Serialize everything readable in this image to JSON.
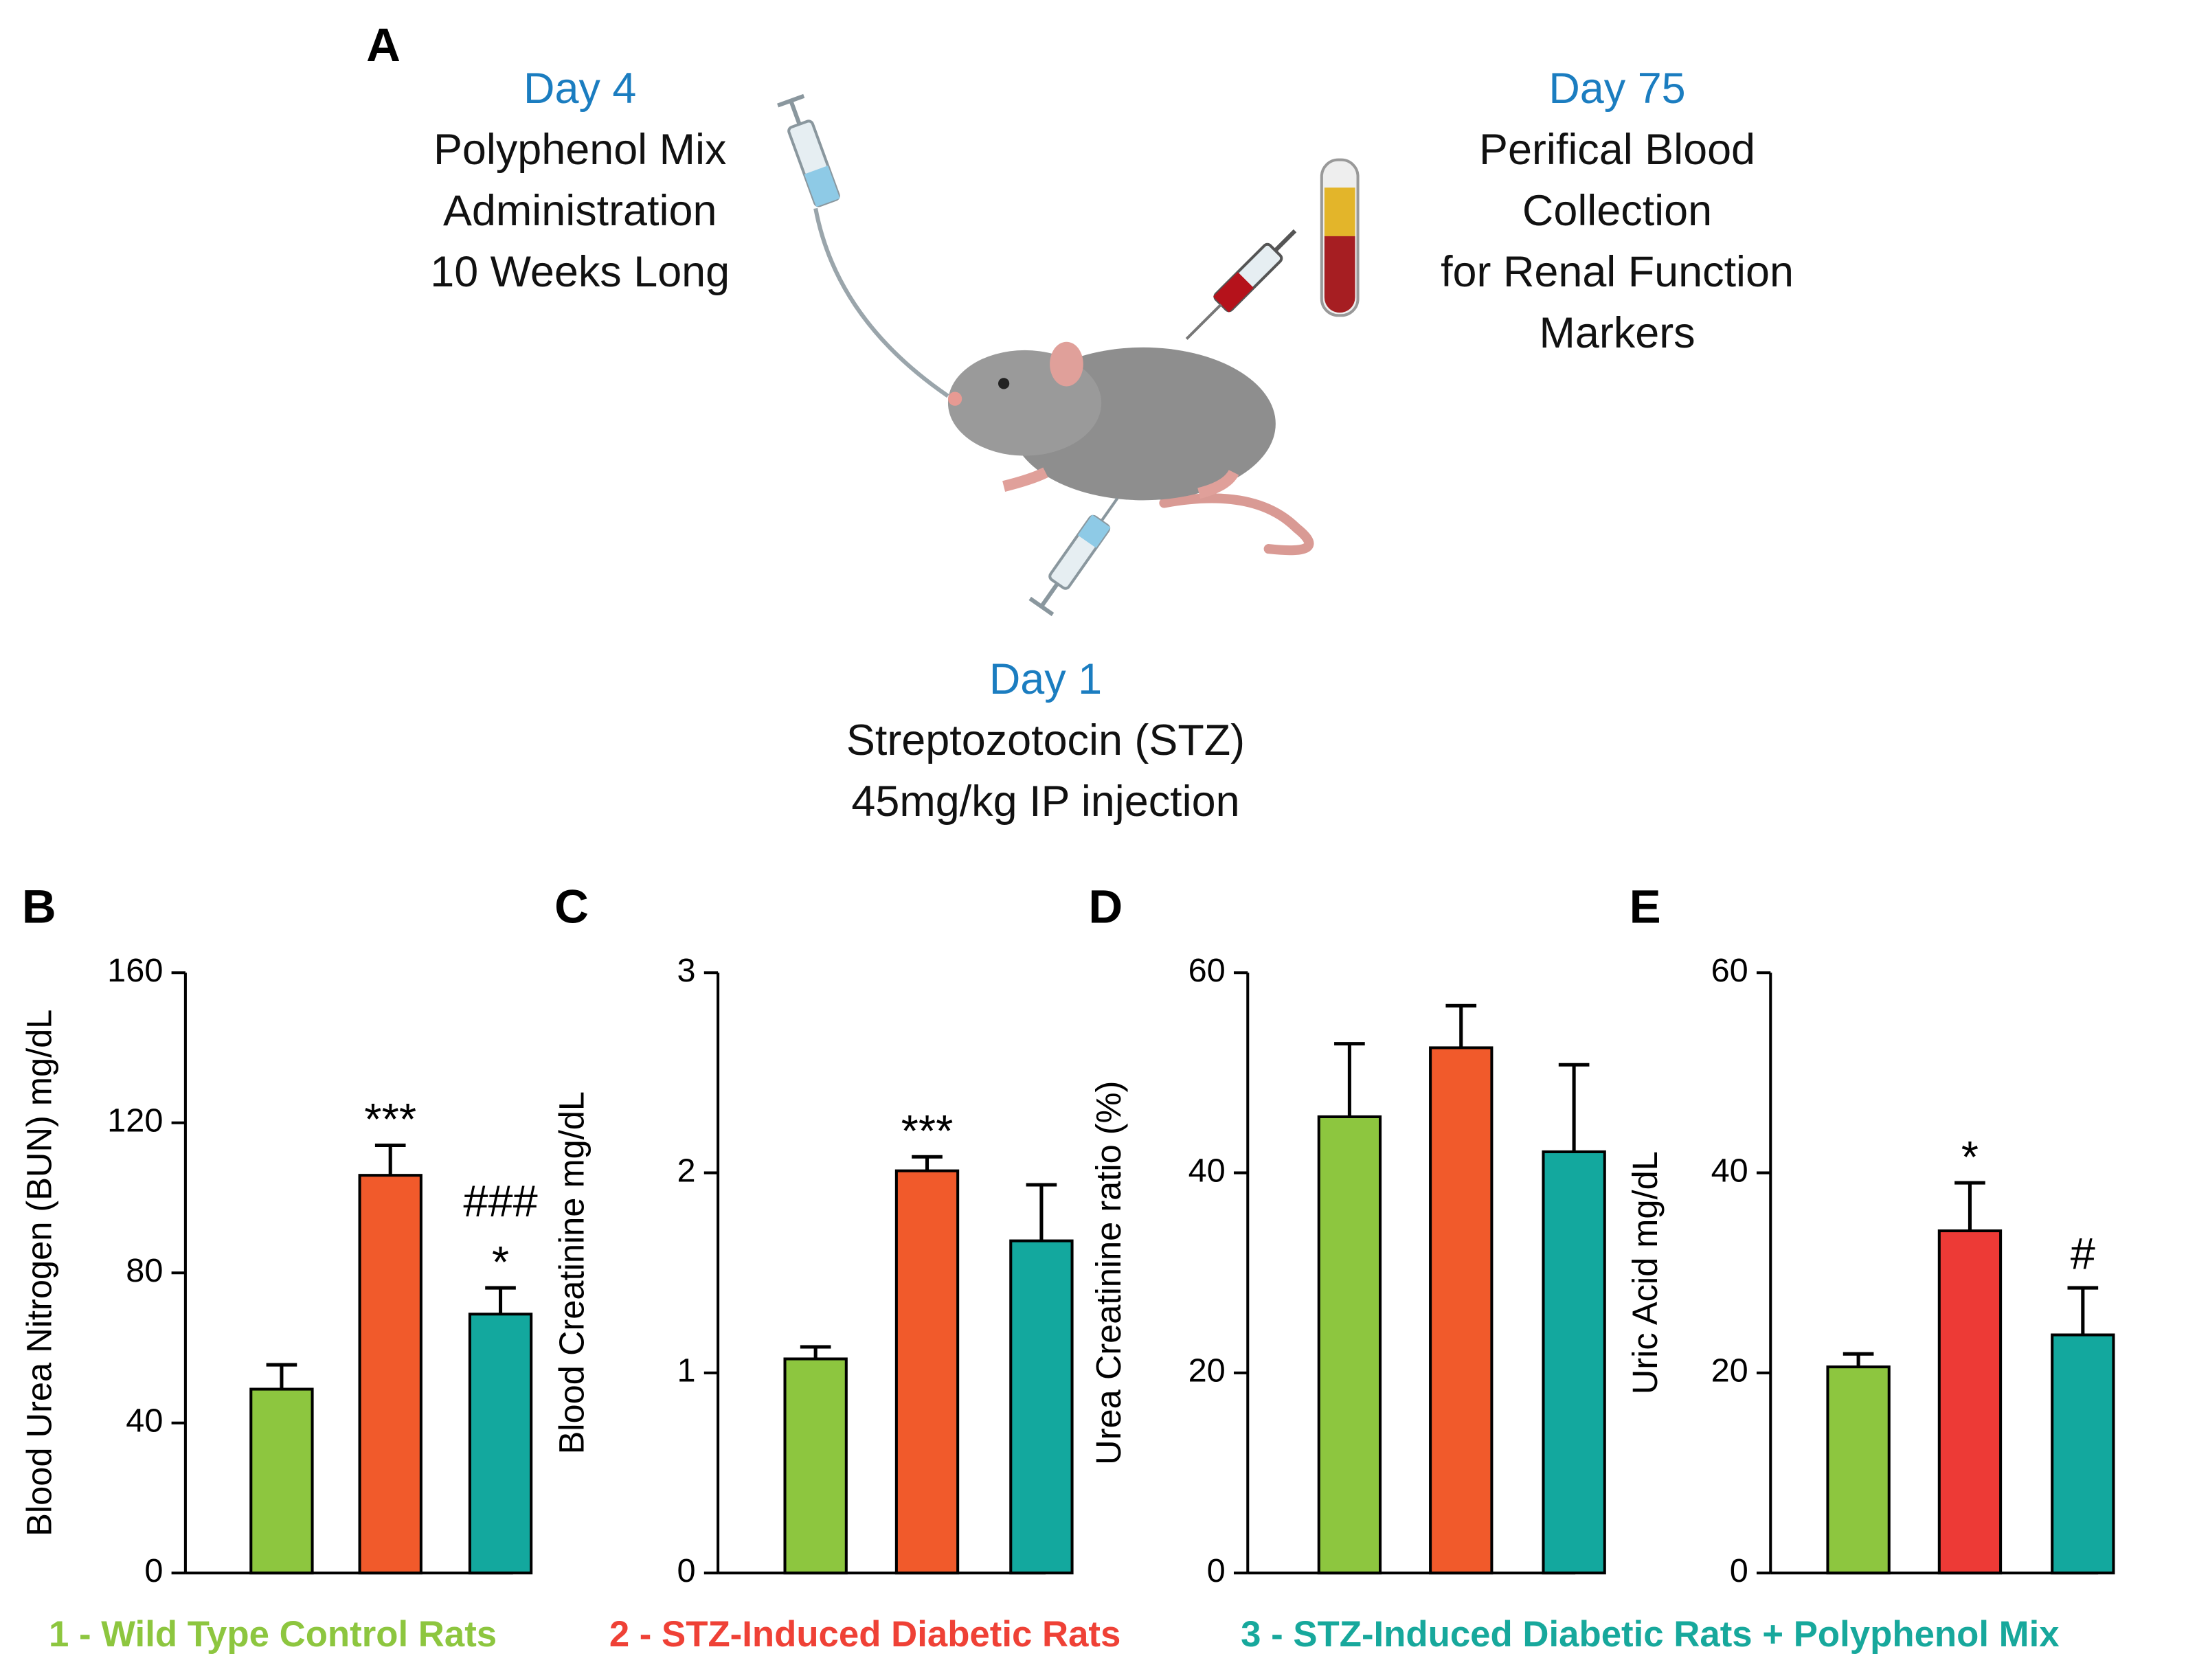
{
  "panel_a": {
    "label": "A",
    "steps": [
      {
        "day": "Day 4",
        "lines": [
          "Polyphenol Mix",
          "Administration",
          "10 Weeks Long"
        ]
      },
      {
        "day": "Day 75",
        "lines": [
          "Perifical Blood",
          "Collection",
          "for Renal Function",
          "Markers"
        ]
      },
      {
        "day": "Day 1",
        "lines": [
          "Streptozotocin (STZ)",
          "45mg/kg IP injection"
        ]
      }
    ]
  },
  "groups": [
    {
      "name": "1 - Wild Type Control Rats",
      "color": "#8dc63f"
    },
    {
      "name": "2 - STZ-Induced Diabetic Rats",
      "color": "#ef4136"
    },
    {
      "name": "3 - STZ-Induced Diabetic Rats + Polyphenol Mix",
      "color": "#17a89c"
    }
  ],
  "chart_data": [
    {
      "type": "bar",
      "panel": "B",
      "ylabel": "Blood Urea Nitrogen (BUN) mg/dL",
      "values": [
        49,
        106,
        69
      ],
      "errors": [
        6.5,
        8,
        7
      ],
      "colors": [
        "#8dc63f",
        "#f15a2b",
        "#13a89e"
      ],
      "annotations": [
        null,
        [
          "***"
        ],
        [
          "###",
          "*"
        ]
      ],
      "ylim": [
        0,
        160
      ],
      "yticks": [
        0,
        40,
        80,
        120,
        160
      ]
    },
    {
      "type": "bar",
      "panel": "C",
      "ylabel": "Blood Creatinine mg/dL",
      "values": [
        1.07,
        2.01,
        1.66
      ],
      "errors": [
        0.06,
        0.07,
        0.28
      ],
      "colors": [
        "#8dc63f",
        "#f15a2b",
        "#13a89e"
      ],
      "annotations": [
        null,
        [
          "***"
        ],
        null
      ],
      "ylim": [
        0,
        3
      ],
      "yticks": [
        0,
        1,
        2,
        3
      ]
    },
    {
      "type": "bar",
      "panel": "D",
      "ylabel": "Urea Creatinine ratio (%)",
      "values": [
        45.6,
        52.5,
        42.1
      ],
      "errors": [
        7.3,
        4.2,
        8.7
      ],
      "colors": [
        "#8dc63f",
        "#f15a2b",
        "#13a89e"
      ],
      "annotations": [
        null,
        null,
        null
      ],
      "ylim": [
        0,
        60
      ],
      "yticks": [
        0,
        20,
        40,
        60
      ]
    },
    {
      "type": "bar",
      "panel": "E",
      "ylabel": "Uric Acid mg/dL",
      "values": [
        20.6,
        34.2,
        23.8
      ],
      "errors": [
        1.3,
        4.8,
        4.7
      ],
      "colors": [
        "#8dc63f",
        "#ed3a36",
        "#13a89e"
      ],
      "annotations": [
        null,
        [
          "*"
        ],
        [
          "#"
        ]
      ],
      "ylim": [
        0,
        60
      ],
      "yticks": [
        0,
        20,
        40,
        60
      ]
    }
  ]
}
